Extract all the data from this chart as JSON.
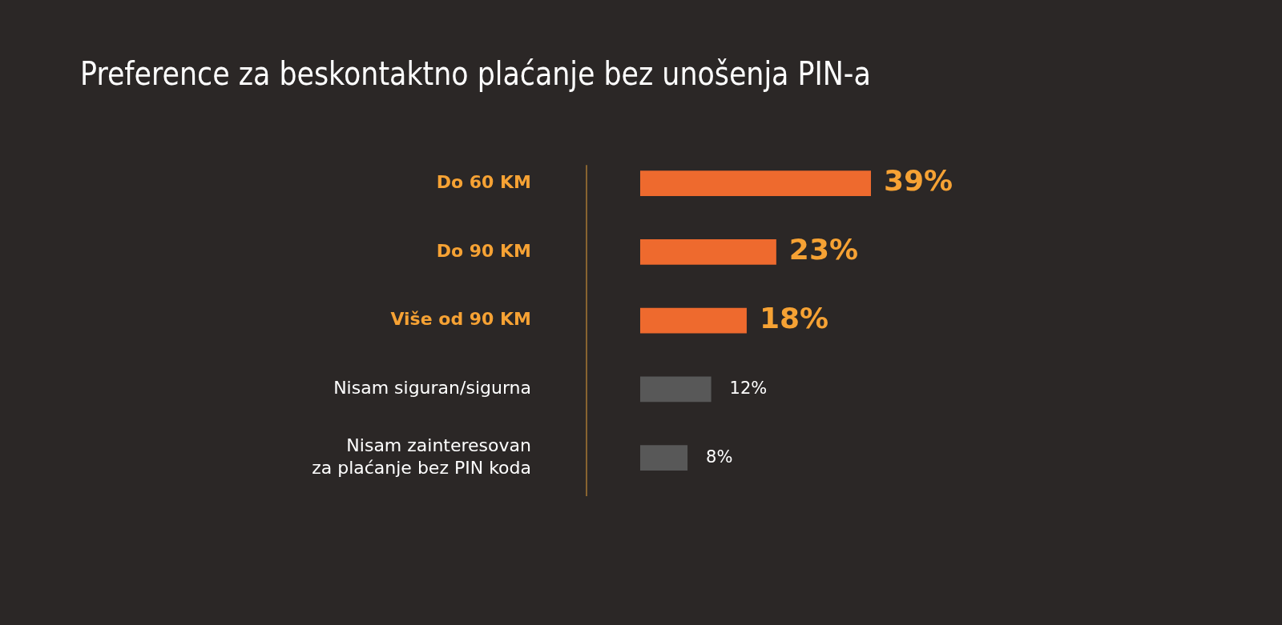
{
  "chart_data": {
    "type": "bar",
    "orientation": "horizontal",
    "title": "Preference za beskontaktno plaćanje bez unošenja PIN-a",
    "categories": [
      "Do 60 KM",
      "Do 90 KM",
      "Više od 90 KM",
      "Nisam siguran/sigurna",
      "Nisam zainteresovan\nza plaćanje bez PIN koda"
    ],
    "values": [
      39,
      23,
      18,
      12,
      8
    ],
    "colors": [
      "#ee6a2e",
      "#ee6a2e",
      "#ee6a2e",
      "#585858",
      "#585858"
    ],
    "value_labels": [
      "39%",
      "23%",
      "18%",
      "12%",
      "8%"
    ],
    "legend": false
  }
}
